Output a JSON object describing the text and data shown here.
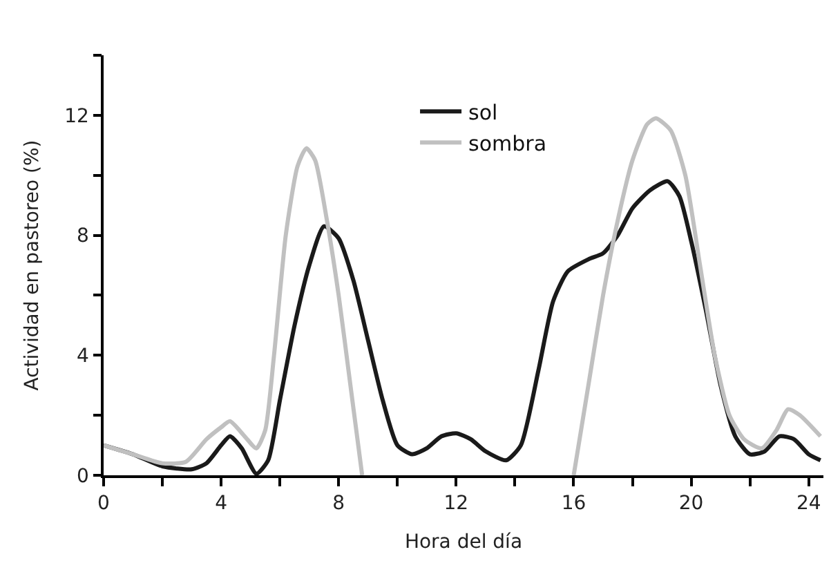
{
  "chart_data": {
    "type": "line",
    "xlabel": "Hora del día",
    "ylabel": "Actividad en pastoreo (%)",
    "xlim": [
      0,
      24.5
    ],
    "xticks": [
      0,
      {
        "value": 2,
        "label": null
      },
      4,
      {
        "value": 6,
        "label": null
      },
      8,
      {
        "value": 10,
        "label": null
      },
      12,
      {
        "value": 14,
        "label": null
      },
      16,
      {
        "value": 18,
        "label": null
      },
      20,
      {
        "value": 22,
        "label": null
      },
      24
    ],
    "ylim": [
      0,
      14
    ],
    "yticks": [
      0,
      {
        "value": 2,
        "label": null
      },
      4,
      {
        "value": 6,
        "label": null
      },
      8,
      {
        "value": 10,
        "label": null
      },
      12,
      {
        "value": 14,
        "label": null
      }
    ],
    "legend": "top",
    "marker": "none",
    "line_style": "solid",
    "series": [
      {
        "name": "sol",
        "color": "#1a1a1a",
        "x": [
          0,
          1,
          2,
          3,
          3.5,
          4,
          4.3,
          4.7,
          5.2,
          5.6,
          6,
          6.5,
          7,
          7.5,
          8,
          8.5,
          9,
          9.5,
          10,
          10.5,
          11,
          11.5,
          12,
          12.5,
          13,
          13.7,
          14.2,
          14.8,
          15.3,
          15.8,
          16.5,
          17,
          17.5,
          18,
          18.6,
          19.2,
          19.6,
          20,
          20.5,
          21,
          21.5,
          22,
          22.5,
          23,
          23.5,
          24,
          24.4
        ],
        "values": [
          1.0,
          0.7,
          0.3,
          0.2,
          0.4,
          1.0,
          1.3,
          0.9,
          0.05,
          0.5,
          2.5,
          5,
          7,
          8.3,
          7.9,
          6.5,
          4.5,
          2.5,
          1.0,
          0.7,
          0.9,
          1.3,
          1.4,
          1.2,
          0.8,
          0.5,
          1.0,
          3.5,
          5.8,
          6.8,
          7.2,
          7.4,
          8,
          8.9,
          9.5,
          9.8,
          9.3,
          7.8,
          5.5,
          3,
          1.3,
          0.7,
          0.8,
          1.3,
          1.2,
          0.7,
          0.5
        ]
      },
      {
        "name": "sombra",
        "color": "#c0c0c0",
        "x": [
          0,
          1,
          2,
          2.8,
          3.5,
          4,
          4.3,
          4.8,
          5.2,
          5.5,
          5.8,
          6.2,
          6.6,
          6.9,
          7.2,
          7.6,
          8,
          8.4,
          8.8,
          12,
          16,
          16.5,
          17,
          17.5,
          18,
          18.5,
          18.8,
          19.3,
          19.8,
          20.3,
          20.8,
          21.3,
          21.8,
          22.4,
          22.9,
          23.3,
          23.7,
          24.4
        ],
        "values": [
          1.0,
          0.7,
          0.4,
          0.45,
          1.2,
          1.6,
          1.8,
          1.3,
          0.9,
          1.5,
          4,
          8,
          10.3,
          10.9,
          10.5,
          8.5,
          6,
          3,
          0,
          null,
          0,
          3,
          6,
          8.5,
          10.5,
          11.7,
          11.9,
          11.5,
          10,
          7,
          4,
          2,
          1.2,
          0.9,
          1.5,
          2.2,
          2.0,
          1.3
        ]
      }
    ]
  }
}
